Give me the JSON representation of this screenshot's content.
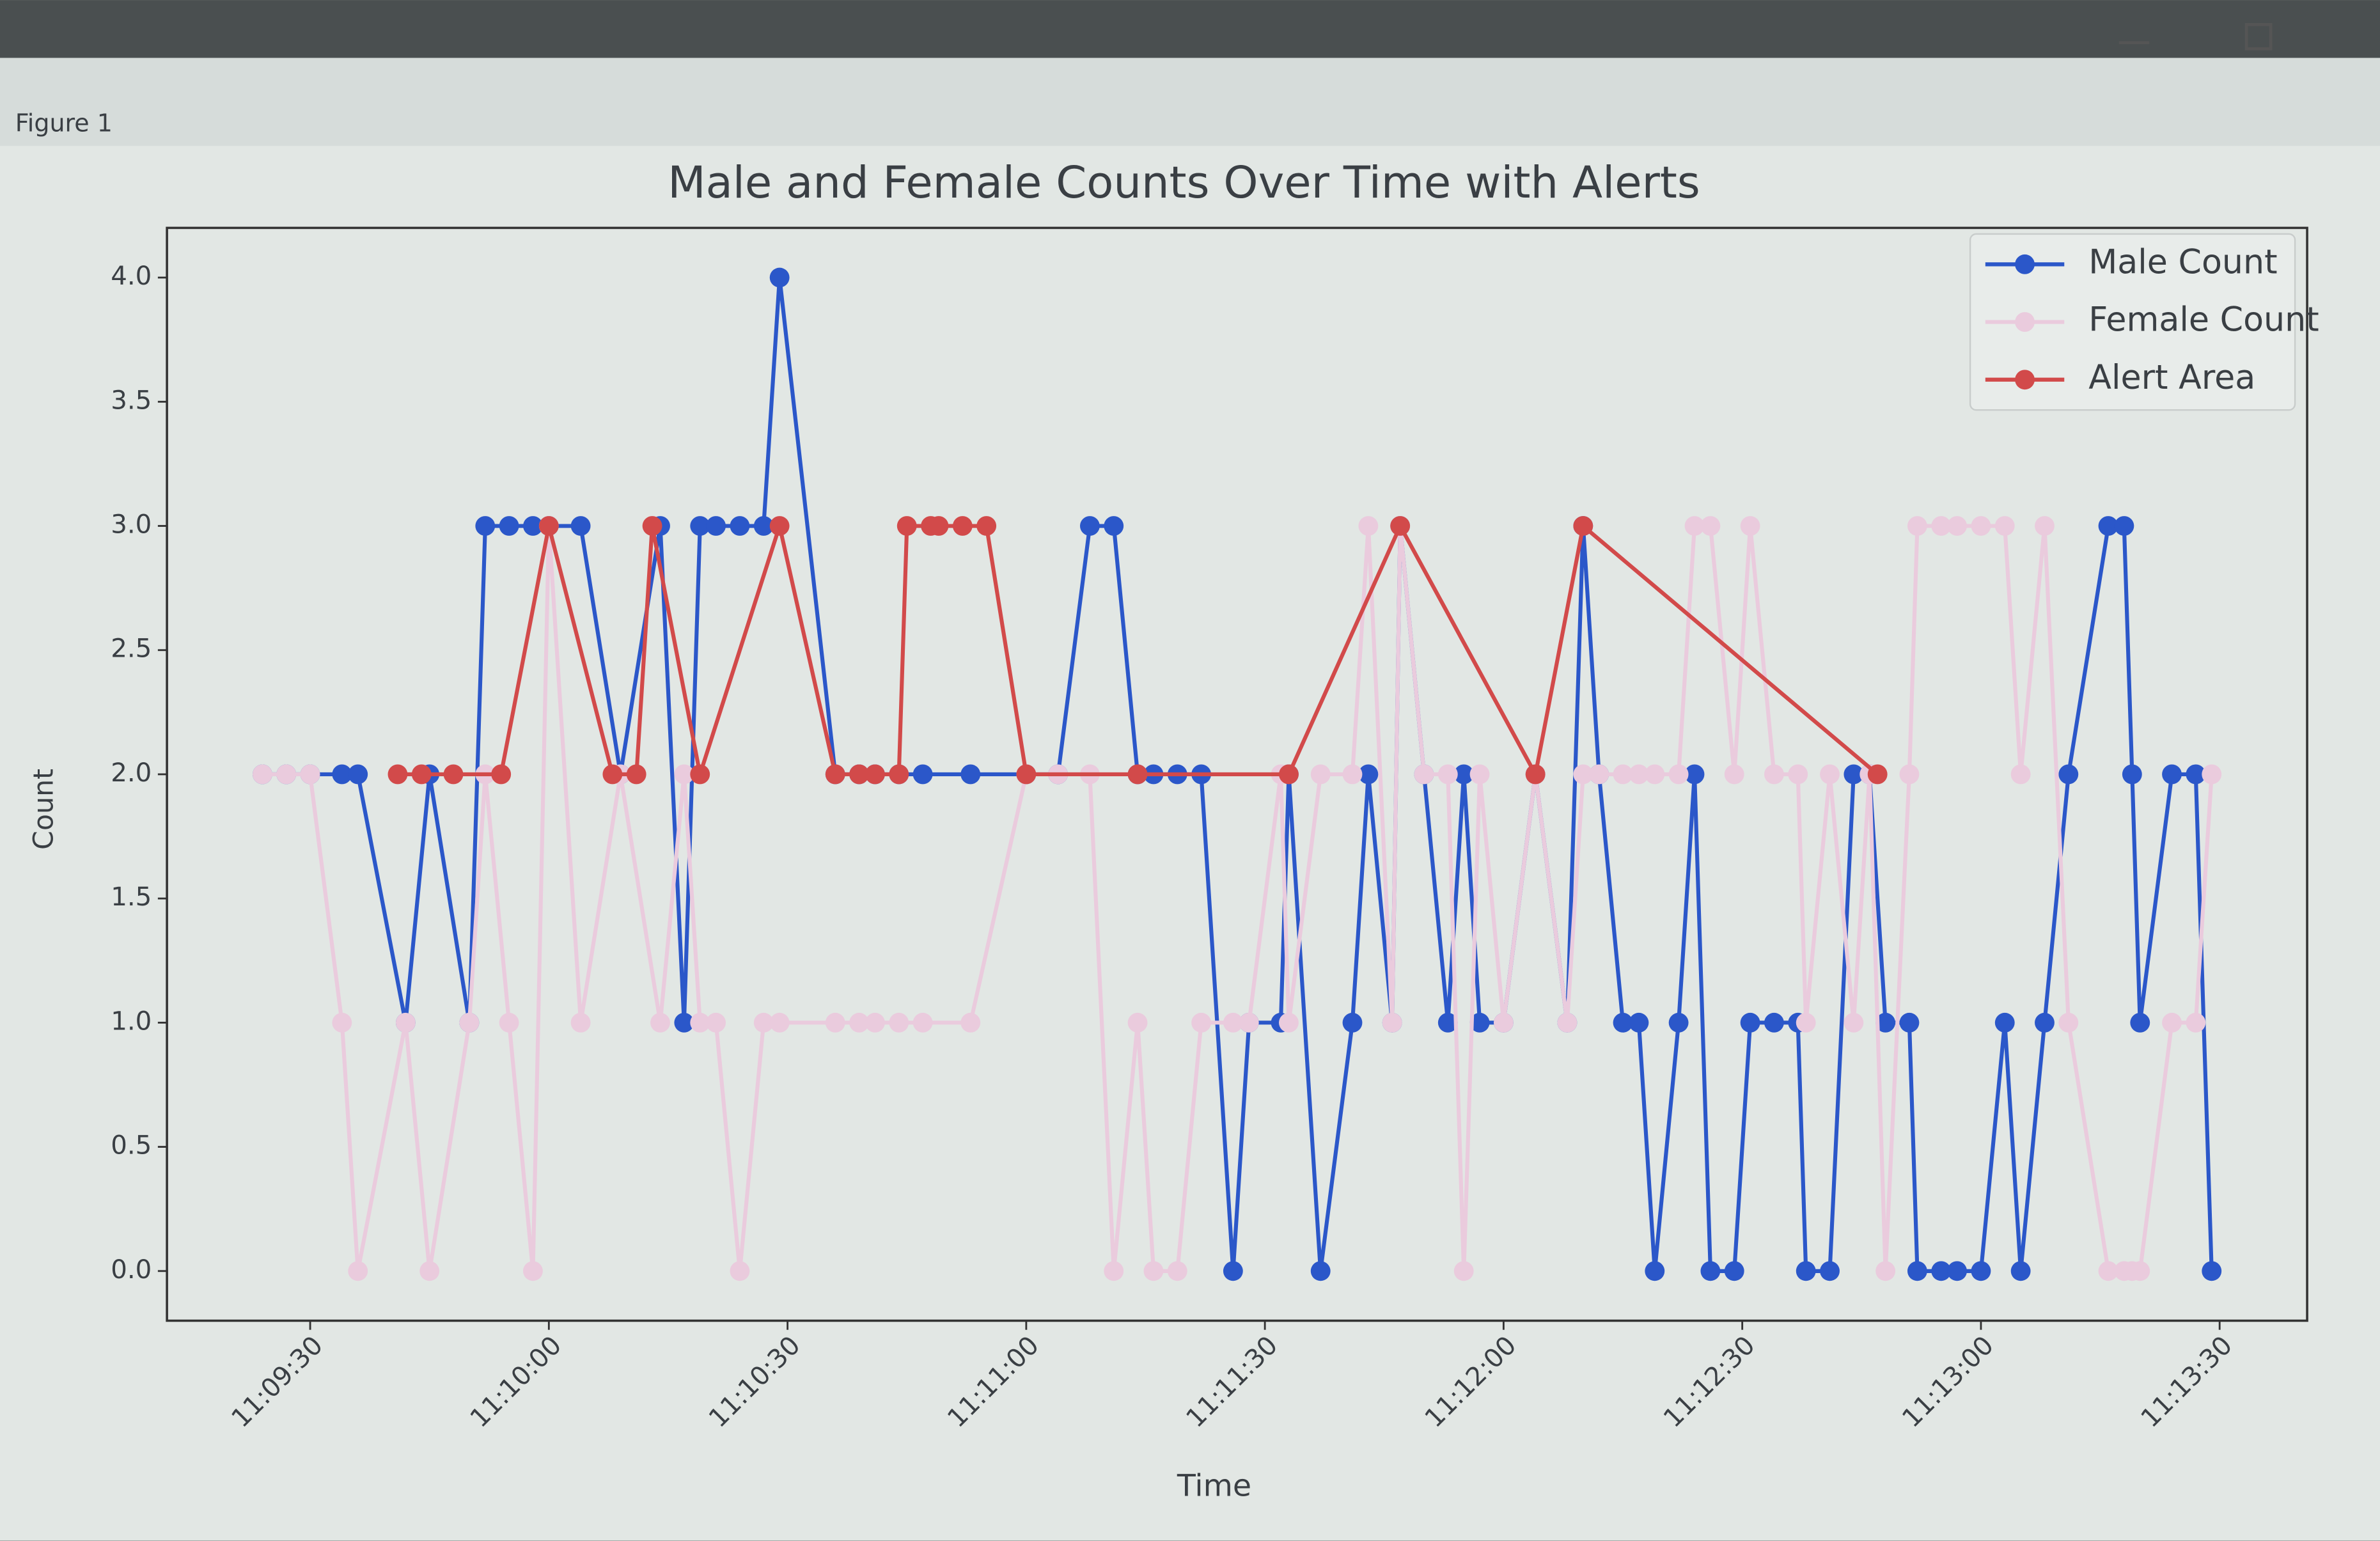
{
  "window": {
    "title": "Figure 1"
  },
  "chart_data": {
    "type": "line",
    "title": "Male and Female Counts Over Time with Alerts",
    "xlabel": "Time",
    "ylabel": "Count",
    "xlim": [
      "11:09:12",
      "11:13:41"
    ],
    "xticks": [
      "11:09:30",
      "11:10:00",
      "11:10:30",
      "11:11:00",
      "11:11:30",
      "11:12:00",
      "11:12:30",
      "11:13:00",
      "11:13:30"
    ],
    "ylim": [
      -0.2,
      4.2
    ],
    "yticks": [
      {
        "value": 0,
        "label": "0.0"
      },
      {
        "value": 0.5,
        "label": "0.5"
      },
      {
        "value": 1,
        "label": "1.0"
      },
      {
        "value": 1.5,
        "label": "1.5"
      },
      {
        "value": 2,
        "label": "2.0"
      },
      {
        "value": 2.5,
        "label": "2.5"
      },
      {
        "value": 3,
        "label": "3.0"
      },
      {
        "value": 3.5,
        "label": "3.5"
      },
      {
        "value": 4,
        "label": "4.0"
      }
    ],
    "legend": "upper right",
    "series": [
      {
        "name": "Male Count",
        "color": "#2b57c9",
        "x": [
          "11:09:24",
          "11:09:27",
          "11:09:30",
          "11:09:34",
          "11:09:36",
          "11:09:42",
          "11:09:45",
          "11:09:50",
          "11:09:52",
          "11:09:55",
          "11:09:58",
          "11:10:00",
          "11:10:04",
          "11:10:09",
          "11:10:14",
          "11:10:17",
          "11:10:19",
          "11:10:21",
          "11:10:24",
          "11:10:27",
          "11:10:29",
          "11:10:36",
          "11:10:39",
          "11:10:41",
          "11:10:44",
          "11:10:47",
          "11:10:53",
          "11:11:00",
          "11:11:04",
          "11:11:08",
          "11:11:11",
          "11:11:14",
          "11:11:16",
          "11:11:19",
          "11:11:22",
          "11:11:26",
          "11:11:28",
          "11:11:32",
          "11:11:33",
          "11:11:37",
          "11:11:41",
          "11:11:43",
          "11:11:46",
          "11:11:47",
          "11:11:50",
          "11:11:53",
          "11:11:55",
          "11:11:57",
          "11:12:00",
          "11:12:04",
          "11:12:08",
          "11:12:10",
          "11:12:12",
          "11:12:15",
          "11:12:17",
          "11:12:19",
          "11:12:22",
          "11:12:24",
          "11:12:26",
          "11:12:29",
          "11:12:31",
          "11:12:34",
          "11:12:37",
          "11:12:38",
          "11:12:41",
          "11:12:44",
          "11:12:46",
          "11:12:48",
          "11:12:51",
          "11:12:52",
          "11:12:55",
          "11:12:57",
          "11:13:00",
          "11:13:03",
          "11:13:05",
          "11:13:08",
          "11:13:11",
          "11:13:16",
          "11:13:18",
          "11:13:19",
          "11:13:20",
          "11:13:24",
          "11:13:27",
          "11:13:29"
        ],
        "values": [
          2,
          2,
          2,
          2,
          2,
          1,
          2,
          1,
          3,
          3,
          3,
          3,
          3,
          2,
          3,
          1,
          3,
          3,
          3,
          3,
          4,
          2,
          2,
          2,
          2,
          2,
          2,
          2,
          2,
          3,
          3,
          2,
          2,
          2,
          2,
          0,
          1,
          1,
          2,
          0,
          1,
          2,
          1,
          3,
          2,
          1,
          2,
          1,
          1,
          2,
          1,
          3,
          2,
          1,
          1,
          0,
          1,
          2,
          0,
          0,
          1,
          1,
          1,
          0,
          0,
          2,
          2,
          1,
          1,
          0,
          0,
          0,
          0,
          1,
          0,
          1,
          2,
          3,
          3,
          2,
          1,
          2,
          2,
          0
        ]
      },
      {
        "name": "Female Count",
        "color": "#eacbdd",
        "x": [
          "11:09:24",
          "11:09:27",
          "11:09:30",
          "11:09:34",
          "11:09:36",
          "11:09:42",
          "11:09:45",
          "11:09:50",
          "11:09:52",
          "11:09:55",
          "11:09:58",
          "11:10:00",
          "11:10:04",
          "11:10:09",
          "11:10:14",
          "11:10:17",
          "11:10:19",
          "11:10:21",
          "11:10:24",
          "11:10:27",
          "11:10:29",
          "11:10:36",
          "11:10:39",
          "11:10:41",
          "11:10:44",
          "11:10:47",
          "11:10:53",
          "11:11:00",
          "11:11:04",
          "11:11:08",
          "11:11:11",
          "11:11:14",
          "11:11:16",
          "11:11:19",
          "11:11:22",
          "11:11:26",
          "11:11:28",
          "11:11:32",
          "11:11:33",
          "11:11:37",
          "11:11:41",
          "11:11:43",
          "11:11:46",
          "11:11:47",
          "11:11:50",
          "11:11:53",
          "11:11:55",
          "11:11:57",
          "11:12:00",
          "11:12:04",
          "11:12:08",
          "11:12:10",
          "11:12:12",
          "11:12:15",
          "11:12:17",
          "11:12:19",
          "11:12:22",
          "11:12:24",
          "11:12:26",
          "11:12:29",
          "11:12:31",
          "11:12:34",
          "11:12:37",
          "11:12:38",
          "11:12:41",
          "11:12:44",
          "11:12:46",
          "11:12:48",
          "11:12:51",
          "11:12:52",
          "11:12:55",
          "11:12:57",
          "11:13:00",
          "11:13:03",
          "11:13:05",
          "11:13:08",
          "11:13:11",
          "11:13:16",
          "11:13:18",
          "11:13:19",
          "11:13:20",
          "11:13:24",
          "11:13:27",
          "11:13:29"
        ],
        "values": [
          2,
          2,
          2,
          1,
          0,
          1,
          0,
          1,
          2,
          1,
          0,
          3,
          1,
          2,
          1,
          2,
          1,
          1,
          0,
          1,
          1,
          1,
          1,
          1,
          1,
          1,
          1,
          2,
          2,
          2,
          0,
          1,
          0,
          0,
          1,
          1,
          1,
          2,
          1,
          2,
          2,
          3,
          1,
          3,
          2,
          2,
          0,
          2,
          1,
          2,
          1,
          2,
          2,
          2,
          2,
          2,
          2,
          3,
          3,
          2,
          3,
          2,
          2,
          1,
          2,
          1,
          2,
          0,
          2,
          3,
          3,
          3,
          3,
          3,
          2,
          3,
          1,
          0,
          0,
          0,
          0,
          1,
          1,
          2
        ]
      },
      {
        "name": "Alert Area",
        "color": "#d24a4a",
        "x": [
          "11:09:41",
          "11:09:44",
          "11:09:48",
          "11:09:54",
          "11:10:00",
          "11:10:08",
          "11:10:11",
          "11:10:13",
          "11:10:19",
          "11:10:29",
          "11:10:36",
          "11:10:39",
          "11:10:41",
          "11:10:44",
          "11:10:45",
          "11:10:48",
          "11:10:49",
          "11:10:52",
          "11:10:55",
          "11:11:00",
          "11:11:14",
          "11:11:33",
          "11:11:47",
          "11:12:04",
          "11:12:10",
          "11:12:47"
        ],
        "values": [
          2,
          2,
          2,
          2,
          3,
          2,
          2,
          3,
          2,
          3,
          2,
          2,
          2,
          2,
          3,
          3,
          3,
          3,
          3,
          2,
          2,
          2,
          3,
          2,
          3,
          2
        ]
      }
    ]
  }
}
